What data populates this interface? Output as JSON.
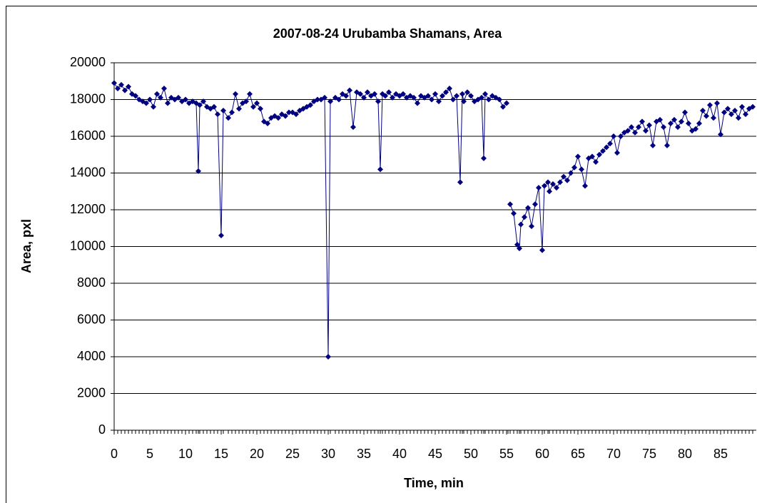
{
  "chart_data": {
    "type": "line",
    "title": "2007-08-24 Urubamba Shamans,  Area",
    "x_label": "Time, min",
    "y_label": "Area, pxl",
    "x": [
      0,
      0.5,
      1,
      1.5,
      2,
      2.5,
      3,
      3.5,
      4,
      4.5,
      5,
      5.5,
      6,
      6.5,
      7,
      7.5,
      8,
      8.5,
      9,
      9.5,
      10,
      10.5,
      11,
      11.5,
      11.8,
      12,
      12.5,
      13,
      13.5,
      14,
      14.5,
      15,
      15.3,
      16,
      16.5,
      17,
      17.5,
      18,
      18.5,
      19,
      19.5,
      20,
      20.5,
      21,
      21.5,
      22,
      22.5,
      23,
      23.5,
      24,
      24.5,
      25,
      25.5,
      26,
      26.5,
      27,
      27.5,
      28,
      28.5,
      29,
      29.5,
      30,
      30.3,
      31,
      31.5,
      32,
      32.5,
      33,
      33.5,
      34,
      34.5,
      35,
      35.5,
      36,
      36.5,
      37,
      37.3,
      37.6,
      38,
      38.5,
      39,
      39.5,
      40,
      40.5,
      41,
      41.5,
      42,
      42.5,
      43,
      43.5,
      44,
      44.5,
      45,
      45.5,
      46,
      46.5,
      47,
      47.5,
      48,
      48.5,
      48.8,
      49,
      49.5,
      50,
      50.5,
      51,
      51.5,
      51.8,
      52,
      52.5,
      53,
      53.5,
      54,
      54.5,
      55,
      55.2,
      55.5,
      56,
      56.5,
      56.8,
      57,
      57.5,
      58,
      58.5,
      59,
      59.5,
      60,
      60.3,
      60.8,
      61,
      61.5,
      62,
      62.5,
      63,
      63.5,
      64,
      64.5,
      65,
      65.5,
      66,
      66.5,
      67,
      67.5,
      68,
      68.5,
      69,
      69.5,
      70,
      70.5,
      71,
      71.5,
      72,
      72.5,
      73,
      73.5,
      74,
      74.5,
      75,
      75.5,
      76,
      76.5,
      77,
      77.5,
      78,
      78.5,
      79,
      79.5,
      80,
      80.5,
      81,
      81.5,
      82,
      82.5,
      83,
      83.5,
      84,
      84.5,
      85,
      85.5,
      86,
      86.5,
      87,
      87.5,
      88,
      88.5,
      89,
      89.5
    ],
    "series": [
      {
        "name": "Area",
        "color": "#000080",
        "values": [
          18900,
          18600,
          18800,
          18500,
          18700,
          18300,
          18200,
          18000,
          17900,
          17800,
          18000,
          17600,
          18300,
          18100,
          18600,
          17800,
          18100,
          18000,
          18100,
          17900,
          18000,
          17800,
          17900,
          17800,
          14100,
          17700,
          17900,
          17600,
          17500,
          17600,
          17200,
          10600,
          17400,
          17000,
          17300,
          18300,
          17500,
          17800,
          17900,
          18300,
          17600,
          17800,
          17500,
          16800,
          16700,
          17000,
          17100,
          17000,
          17200,
          17100,
          17300,
          17300,
          17200,
          17400,
          17500,
          17600,
          17700,
          17900,
          18000,
          18000,
          18100,
          4000,
          17900,
          18100,
          18000,
          18300,
          18200,
          18500,
          16500,
          18400,
          18300,
          18100,
          18400,
          18200,
          18300,
          17900,
          14200,
          18300,
          18200,
          18400,
          18100,
          18300,
          18200,
          18300,
          18100,
          18200,
          18100,
          17800,
          18200,
          18100,
          18200,
          18000,
          18300,
          17900,
          18200,
          18400,
          18600,
          18000,
          18200,
          13500,
          18300,
          17900,
          18400,
          18200,
          17900,
          18000,
          18100,
          14800,
          18300,
          18000,
          18200,
          18100,
          18000,
          17600,
          17800,
          null,
          12300,
          11800,
          10100,
          9900,
          11200,
          11600,
          12100,
          11100,
          12300,
          13200,
          9800,
          13300,
          13500,
          13000,
          13400,
          13200,
          13500,
          13800,
          13600,
          14000,
          14300,
          14900,
          14200,
          13300,
          14800,
          14900,
          14600,
          15000,
          15200,
          15400,
          15600,
          16000,
          15100,
          16000,
          16200,
          16300,
          16500,
          16200,
          16500,
          16800,
          16300,
          16600,
          15500,
          16800,
          16900,
          16500,
          15500,
          16700,
          16900,
          16500,
          16800,
          17300,
          16700,
          16300,
          16400,
          16700,
          17400,
          17100,
          17700,
          17000,
          17800,
          16100,
          17300,
          17500,
          17200,
          17400,
          17000,
          17600,
          17200,
          17500,
          17600
        ]
      }
    ],
    "xlim": [
      0,
      90
    ],
    "xticks": [
      0,
      5,
      10,
      15,
      20,
      25,
      30,
      35,
      40,
      45,
      50,
      55,
      60,
      65,
      70,
      75,
      80,
      85
    ],
    "ylim": [
      0,
      20000
    ],
    "yticks": [
      0,
      2000,
      4000,
      6000,
      8000,
      10000,
      12000,
      14000,
      16000,
      18000,
      20000
    ],
    "grid": true
  }
}
